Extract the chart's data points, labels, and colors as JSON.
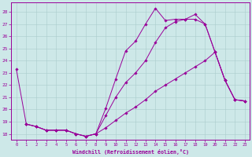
{
  "xlabel": "Windchill (Refroidissement éolien,°C)",
  "background_color": "#cde8e8",
  "line_color": "#990099",
  "grid_color": "#aacccc",
  "xlim": [
    -0.5,
    23.5
  ],
  "ylim": [
    17.5,
    28.8
  ],
  "yticks": [
    18,
    19,
    20,
    21,
    22,
    23,
    24,
    25,
    26,
    27,
    28
  ],
  "xticks": [
    0,
    1,
    2,
    3,
    4,
    5,
    6,
    7,
    8,
    9,
    10,
    11,
    12,
    13,
    14,
    15,
    16,
    17,
    18,
    19,
    20,
    21,
    22,
    23
  ],
  "line1_x": [
    0,
    1,
    2,
    3,
    4,
    5,
    6,
    7,
    8,
    9,
    10,
    11,
    12,
    13,
    14,
    15,
    16,
    17,
    18,
    19,
    20,
    21,
    22,
    23
  ],
  "line1_y": [
    23.3,
    18.8,
    18.6,
    18.3,
    18.3,
    18.3,
    18.0,
    17.8,
    18.0,
    20.1,
    22.5,
    24.8,
    25.6,
    27.0,
    28.3,
    27.3,
    27.4,
    27.4,
    27.8,
    27.0,
    24.7,
    22.4,
    20.8,
    20.7
  ],
  "line2_x": [
    1,
    2,
    3,
    4,
    5,
    6,
    7,
    8,
    9,
    10,
    11,
    12,
    13,
    14,
    15,
    16,
    17,
    18,
    19,
    20,
    21,
    22,
    23
  ],
  "line2_y": [
    18.8,
    18.6,
    18.3,
    18.3,
    18.3,
    18.0,
    17.8,
    18.0,
    19.5,
    21.0,
    22.2,
    23.0,
    24.0,
    25.5,
    26.7,
    27.2,
    27.4,
    27.4,
    27.0,
    24.7,
    22.4,
    20.8,
    20.7
  ],
  "line3_x": [
    1,
    2,
    3,
    4,
    5,
    6,
    7,
    8,
    9,
    10,
    11,
    12,
    13,
    14,
    15,
    16,
    17,
    18,
    19,
    20,
    21,
    22,
    23
  ],
  "line3_y": [
    18.8,
    18.6,
    18.3,
    18.3,
    18.3,
    18.0,
    17.8,
    18.0,
    18.5,
    19.1,
    19.7,
    20.2,
    20.8,
    21.5,
    22.0,
    22.5,
    23.0,
    23.5,
    24.0,
    24.7,
    22.4,
    20.8,
    20.7
  ]
}
